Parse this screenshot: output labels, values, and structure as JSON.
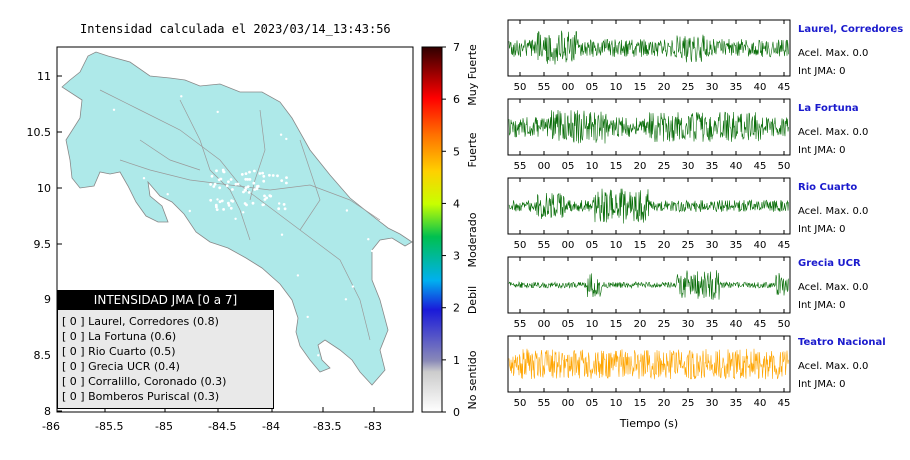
{
  "map": {
    "title": "Intensidad calculada el 2023/03/14_13:43:56",
    "x_ticks": [
      "-86",
      "-85.5",
      "-85",
      "-84.5",
      "-84",
      "-83.5",
      "-83"
    ],
    "y_ticks": [
      "11",
      "10.5",
      "10",
      "9.5",
      "9",
      "8.5",
      "8"
    ]
  },
  "scale": {
    "ticks": [
      "7",
      "6",
      "5",
      "4",
      "3",
      "2",
      "1",
      "0"
    ],
    "labels": [
      "Muy Fuerte",
      "Fuerte",
      "Moderado",
      "Debil",
      "No sentido"
    ]
  },
  "legend": {
    "title": "INTENSIDAD JMA [0 a 7]",
    "rows": [
      "[ 0 ]  Laurel, Corredores (0.8)",
      "[ 0 ]  La Fortuna (0.6)",
      "[ 0 ]  Rio Cuarto (0.5)",
      "[ 0 ]  Grecia UCR (0.4)",
      "[ 0 ]  Corralillo, Coronado (0.3)",
      "[ 0 ]  Bomberos Puriscal (0.3)"
    ]
  },
  "stations": [
    {
      "name": "Laurel, Corredores",
      "acc": "Acel. Max. 0.0",
      "int": "Int JMA: 0",
      "color": "#0a6e0a",
      "ticks": [
        "50",
        "55",
        "00",
        "05",
        "10",
        "15",
        "20",
        "25",
        "30",
        "35",
        "40",
        "45"
      ]
    },
    {
      "name": "La Fortuna",
      "acc": "Acel. Max. 0.0",
      "int": "Int JMA: 0",
      "color": "#0a6e0a",
      "ticks": [
        "55",
        "00",
        "05",
        "10",
        "15",
        "20",
        "25",
        "30",
        "35",
        "40",
        "45",
        "50"
      ]
    },
    {
      "name": "Rio Cuarto",
      "acc": "Acel. Max. 0.0",
      "int": "Int JMA: 0",
      "color": "#0a6e0a",
      "ticks": [
        "50",
        "55",
        "00",
        "05",
        "10",
        "15",
        "20",
        "25",
        "30",
        "35",
        "40",
        "45"
      ]
    },
    {
      "name": "Grecia UCR",
      "acc": "Acel. Max. 0.0",
      "int": "Int JMA: 0",
      "color": "#0a6e0a",
      "ticks": [
        "55",
        "00",
        "05",
        "10",
        "15",
        "20",
        "25",
        "30",
        "35",
        "40",
        "45",
        "50"
      ]
    },
    {
      "name": "Teatro Nacional",
      "acc": "Acel. Max. 0.0",
      "int": "Int JMA: 0",
      "color": "#ffa500",
      "ticks": [
        "50",
        "55",
        "00",
        "05",
        "10",
        "15",
        "20",
        "25",
        "30",
        "35",
        "40",
        "45"
      ]
    }
  ],
  "xlabel": "Tiempo (s)",
  "colors": {
    "land": "#aee9e9",
    "waveform_green": "#0a6e0a",
    "waveform_orange": "#ffa500",
    "station_name": "#1a1acd"
  },
  "chart_data": [
    {
      "type": "heatmap",
      "title": "Intensidad calculada el 2023/03/14_13:43:56",
      "xlim": [
        -86,
        -82.6
      ],
      "ylim": [
        8,
        11.3
      ],
      "colorbar": {
        "range": [
          0,
          7
        ],
        "labels": [
          "No sentido",
          "Debil",
          "Moderado",
          "Fuerte",
          "Muy Fuerte"
        ]
      },
      "stations_intensity": [
        {
          "name": "Laurel, Corredores",
          "jma": 0,
          "value": 0.8
        },
        {
          "name": "La Fortuna",
          "jma": 0,
          "value": 0.6
        },
        {
          "name": "Rio Cuarto",
          "jma": 0,
          "value": 0.5
        },
        {
          "name": "Grecia UCR",
          "jma": 0,
          "value": 0.4
        },
        {
          "name": "Corralillo, Coronado",
          "jma": 0,
          "value": 0.3
        },
        {
          "name": "Bomberos Puriscal",
          "jma": 0,
          "value": 0.3
        }
      ]
    },
    {
      "type": "line",
      "xlabel": "Tiempo (s)",
      "series": [
        {
          "name": "Laurel, Corredores"
        },
        {
          "name": "La Fortuna"
        },
        {
          "name": "Rio Cuarto"
        },
        {
          "name": "Grecia UCR"
        },
        {
          "name": "Teatro Nacional"
        }
      ]
    }
  ]
}
